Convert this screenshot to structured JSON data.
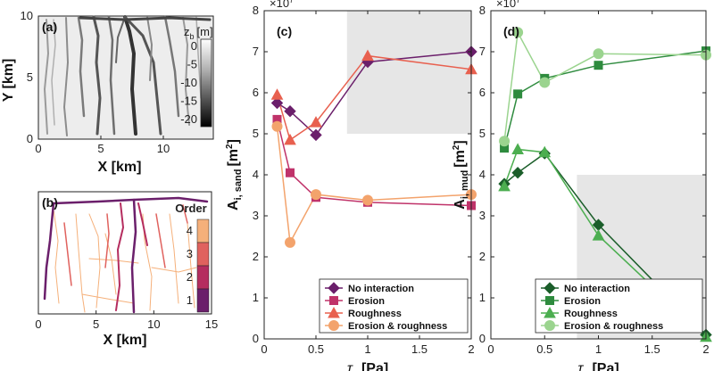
{
  "chart_data": [
    {
      "panel": "(a)",
      "type": "heatmap",
      "xlabel": "X [km]",
      "ylabel": "Y [km]",
      "xticks": [
        "0",
        "5",
        "10"
      ],
      "yticks": [
        "0",
        "5",
        "10"
      ],
      "xlim": [
        0,
        14
      ],
      "ylim": [
        0,
        10
      ],
      "colorbar": {
        "title": "z",
        "subscript": "b",
        "units": "[m]",
        "ticks": [
          "0",
          "-5",
          "-10",
          "-15",
          "-20"
        ],
        "range": [
          -22,
          2
        ]
      }
    },
    {
      "panel": "(b)",
      "type": "line",
      "xlabel": "X [km]",
      "xticks": [
        "0",
        "5",
        "10",
        "15"
      ],
      "xlim": [
        0,
        15
      ],
      "legend_title": "Order",
      "order_levels": [
        "4",
        "3",
        "2",
        "1"
      ],
      "order_colors": [
        "#f5b07a",
        "#e0625e",
        "#b52d5f",
        "#6b1f6b"
      ]
    },
    {
      "panel": "(c)",
      "type": "line",
      "xlabel": "τ",
      "xlabel_sub": "e",
      "xlabel_units": "[Pa]",
      "ylabel": "A",
      "ylabel_sub": "i, sand",
      "ylabel_units": "[m",
      "ylabel_sup": "2",
      "ylabel_close": "]",
      "exponent_label": "×10",
      "exponent_sup": "7",
      "xlim": [
        0,
        2
      ],
      "ylim": [
        0,
        8
      ],
      "xticks": [
        "0",
        "0.5",
        "1",
        "1.5",
        "2"
      ],
      "yticks": [
        "0",
        "1",
        "2",
        "3",
        "4",
        "5",
        "6",
        "7",
        "8"
      ],
      "shaded_region": {
        "x": [
          0.8,
          2.1
        ],
        "y": [
          5,
          8
        ]
      },
      "x": [
        0.125,
        0.25,
        0.5,
        1,
        2
      ],
      "series": [
        {
          "name": "No interaction",
          "color": "#6b1f6b",
          "marker": "diamond",
          "values": [
            5.75,
            5.55,
            4.97,
            6.75,
            7.0
          ]
        },
        {
          "name": "Erosion",
          "color": "#c0336a",
          "marker": "square",
          "values": [
            5.35,
            4.05,
            3.45,
            3.33,
            3.25
          ]
        },
        {
          "name": "Roughness",
          "color": "#e8604f",
          "marker": "triangle",
          "values": [
            5.95,
            4.85,
            5.28,
            6.9,
            6.57
          ]
        },
        {
          "name": "Erosion & roughness",
          "color": "#f3a36c",
          "marker": "circle",
          "values": [
            5.18,
            2.35,
            3.52,
            3.38,
            3.52
          ]
        }
      ]
    },
    {
      "panel": "(d)",
      "type": "line",
      "xlabel": "τ",
      "xlabel_sub": "e",
      "xlabel_units": "[Pa]",
      "ylabel": "A",
      "ylabel_sub": "i, mud",
      "ylabel_units": "[m",
      "ylabel_sup": "2",
      "ylabel_close": "]",
      "exponent_label": "×10",
      "exponent_sup": "7",
      "xlim": [
        0,
        2
      ],
      "ylim": [
        0,
        8
      ],
      "xticks": [
        "0",
        "0.5",
        "1",
        "1.5",
        "2"
      ],
      "yticks": [
        "0",
        "1",
        "2",
        "3",
        "4",
        "5",
        "6",
        "7",
        "8"
      ],
      "shaded_region": {
        "x": [
          0.8,
          2.1
        ],
        "y": [
          0,
          4
        ]
      },
      "x": [
        0.125,
        0.25,
        0.5,
        1,
        2
      ],
      "series": [
        {
          "name": "No interaction",
          "color": "#1b5e2a",
          "marker": "diamond",
          "values": [
            3.78,
            4.05,
            4.52,
            2.78,
            0.1
          ]
        },
        {
          "name": "Erosion",
          "color": "#2e8b3e",
          "marker": "square",
          "values": [
            4.65,
            5.97,
            6.35,
            6.67,
            7.02
          ]
        },
        {
          "name": "Roughness",
          "color": "#4cae50",
          "marker": "triangle",
          "values": [
            3.72,
            4.62,
            4.55,
            2.52,
            0.05
          ]
        },
        {
          "name": "Erosion & roughness",
          "color": "#9bd48f",
          "marker": "circle",
          "values": [
            4.82,
            7.47,
            6.25,
            6.95,
            6.92
          ]
        }
      ]
    }
  ]
}
